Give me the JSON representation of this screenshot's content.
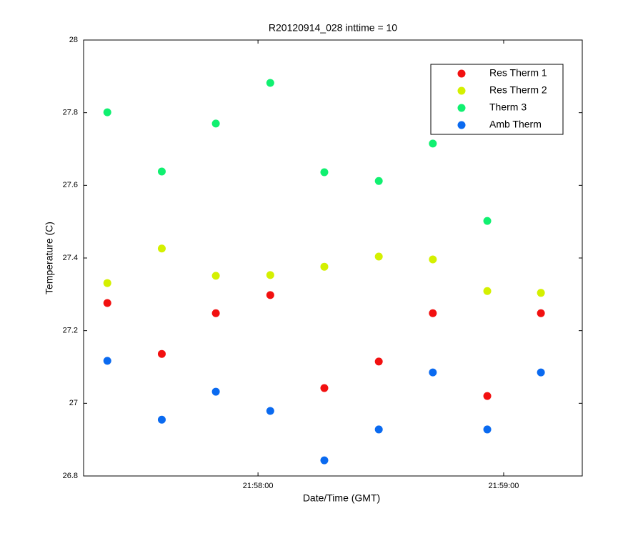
{
  "chart_data": {
    "type": "scatter",
    "title": "R20120914_028 inttime = 10",
    "x_label": "Date/Time (GMT)",
    "y_label": "Temperature (C)",
    "x": [
      79043.2,
      79056.5,
      79069.7,
      79083.0,
      79096.2,
      79109.5,
      79122.7,
      79136.0,
      79149.1
    ],
    "series": [
      {
        "name": "Res Therm 1",
        "color": "#f21010",
        "values": [
          27.276,
          27.136,
          27.248,
          27.298,
          27.042,
          27.115,
          27.248,
          27.02,
          27.248
        ]
      },
      {
        "name": "Res Therm 2",
        "color": "#d4f000",
        "values": [
          27.331,
          27.426,
          27.351,
          27.353,
          27.376,
          27.404,
          27.396,
          27.309,
          27.304
        ]
      },
      {
        "name": "Therm 3",
        "color": "#10f070",
        "values": [
          27.801,
          27.638,
          27.77,
          27.882,
          27.636,
          27.612,
          27.715,
          27.502,
          null
        ]
      },
      {
        "name": "Amb Therm",
        "color": "#0a6af0",
        "values": [
          27.117,
          26.955,
          27.032,
          26.979,
          26.843,
          26.928,
          27.085,
          26.928,
          27.085
        ]
      }
    ],
    "xlim": [
      79037.4,
      79159.2
    ],
    "xticks": [
      {
        "value": 79080,
        "label": "21:58:00"
      },
      {
        "value": 79140,
        "label": "21:59:00"
      }
    ],
    "ylim": [
      26.8,
      28
    ],
    "yticks": [
      26.8,
      27,
      27.2,
      27.4,
      27.6,
      27.8,
      28
    ],
    "grid": false,
    "legend": "upper-right"
  }
}
